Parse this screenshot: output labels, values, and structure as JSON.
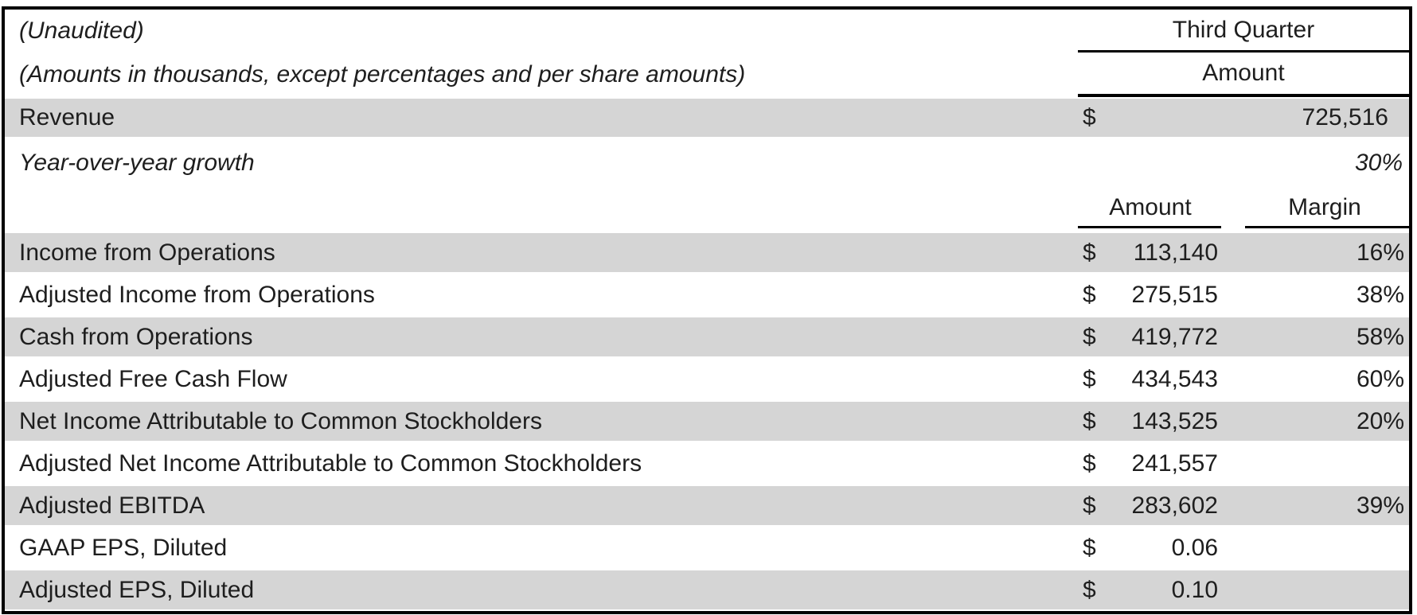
{
  "document": {
    "type": "financial-summary-table",
    "notes": {
      "line1": "(Unaudited)",
      "line2": "(Amounts in thousands, except percentages and per share amounts)"
    },
    "period_header": {
      "title": "Third Quarter",
      "subtitle": "Amount"
    },
    "section1": {
      "rows": [
        {
          "label": "Revenue",
          "currency": "$",
          "amount": "725,516"
        },
        {
          "label": "Year-over-year growth",
          "value": "30%"
        }
      ]
    },
    "section2": {
      "headers": {
        "amount": "Amount",
        "margin": "Margin"
      },
      "rows": [
        {
          "label": "Income from Operations",
          "currency": "$",
          "amount": "113,140",
          "margin": "16%"
        },
        {
          "label": "Adjusted Income from Operations",
          "currency": "$",
          "amount": "275,515",
          "margin": "38%"
        },
        {
          "label": "Cash from Operations",
          "currency": "$",
          "amount": "419,772",
          "margin": "58%"
        },
        {
          "label": "Adjusted Free Cash Flow",
          "currency": "$",
          "amount": "434,543",
          "margin": "60%"
        },
        {
          "label": "Net Income Attributable to Common Stockholders",
          "currency": "$",
          "amount": "143,525",
          "margin": "20%"
        },
        {
          "label": "Adjusted Net Income Attributable to Common Stockholders",
          "currency": "$",
          "amount": "241,557",
          "margin": ""
        },
        {
          "label": "Adjusted EBITDA",
          "currency": "$",
          "amount": "283,602",
          "margin": "39%"
        },
        {
          "label": "GAAP EPS, Diluted",
          "currency": "$",
          "amount": "0.06",
          "margin": ""
        },
        {
          "label": "Adjusted EPS, Diluted",
          "currency": "$",
          "amount": "0.10",
          "margin": ""
        }
      ]
    },
    "colors": {
      "shaded_row": "#d5d5d5",
      "text": "#1e1e1e",
      "border": "#000000"
    }
  }
}
